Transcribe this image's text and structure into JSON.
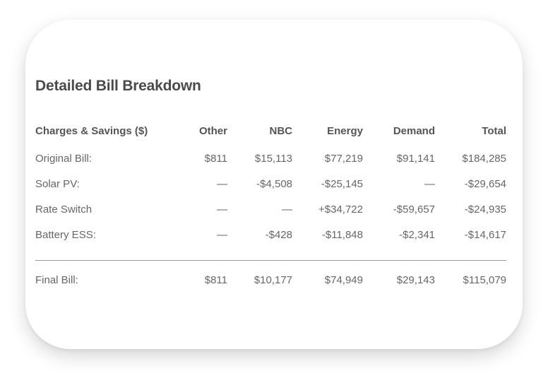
{
  "card": {
    "title": "Detailed Bill Breakdown"
  },
  "table": {
    "headers": {
      "label": "Charges & Savings ($)",
      "other": "Other",
      "nbc": "NBC",
      "energy": "Energy",
      "demand": "Demand",
      "total": "Total"
    },
    "rows": [
      {
        "label": "Original Bill:",
        "other": "$811",
        "nbc": "$15,113",
        "energy": "$77,219",
        "demand": "$91,141",
        "total": "$184,285"
      },
      {
        "label": "Solar PV:",
        "other": "—",
        "nbc": "-$4,508",
        "energy": "-$25,145",
        "demand": "—",
        "total": "-$29,654"
      },
      {
        "label": "Rate Switch",
        "other": "—",
        "nbc": "—",
        "energy": "+$34,722",
        "demand": "-$59,657",
        "total": "-$24,935"
      },
      {
        "label": "Battery ESS:",
        "other": "—",
        "nbc": "-$428",
        "energy": "-$11,848",
        "demand": "-$2,341",
        "total": "-$14,617"
      }
    ],
    "final": {
      "label": "Final Bill:",
      "other": "$811",
      "nbc": "$10,177",
      "energy": "$74,949",
      "demand": "$29,143",
      "total": "$115,079"
    }
  }
}
